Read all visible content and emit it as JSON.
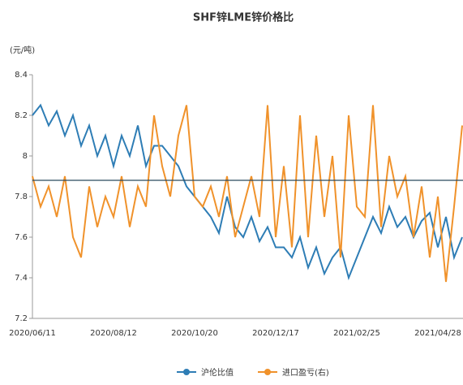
{
  "chart_data": {
    "type": "line",
    "title": "SHF锌LME锌价格比",
    "y_unit": "(元/吨)",
    "categories": [
      "2020/06/11",
      null,
      null,
      null,
      null,
      null,
      null,
      null,
      null,
      null,
      "2020/08/12",
      null,
      null,
      null,
      null,
      null,
      null,
      null,
      null,
      null,
      "2020/10/20",
      null,
      null,
      null,
      null,
      null,
      null,
      null,
      null,
      null,
      "2020/12/17",
      null,
      null,
      null,
      null,
      null,
      null,
      null,
      null,
      null,
      "2021/02/25",
      null,
      null,
      null,
      null,
      null,
      null,
      null,
      null,
      null,
      "2021/04/28",
      null,
      null,
      null
    ],
    "series": [
      {
        "name": "沪伦比值",
        "color": "#2e7db5",
        "values": [
          8.2,
          8.25,
          8.15,
          8.22,
          8.1,
          8.2,
          8.05,
          8.15,
          8.0,
          8.1,
          7.95,
          8.1,
          8.0,
          8.15,
          7.95,
          8.05,
          8.05,
          8.0,
          7.95,
          7.85,
          7.8,
          7.75,
          7.7,
          7.62,
          7.8,
          7.65,
          7.6,
          7.7,
          7.58,
          7.65,
          7.55,
          7.55,
          7.5,
          7.6,
          7.45,
          7.55,
          7.42,
          7.5,
          7.55,
          7.4,
          7.5,
          7.6,
          7.7,
          7.62,
          7.75,
          7.65,
          7.7,
          7.6,
          7.68,
          7.72,
          7.55,
          7.7,
          7.5,
          7.6
        ]
      },
      {
        "name": "进口盈亏(右)",
        "color": "#f0922b",
        "values": [
          7.9,
          7.75,
          7.85,
          7.7,
          7.9,
          7.6,
          7.5,
          7.85,
          7.65,
          7.8,
          7.7,
          7.9,
          7.65,
          7.85,
          7.75,
          8.2,
          7.95,
          7.8,
          8.1,
          8.25,
          7.8,
          7.75,
          7.85,
          7.7,
          7.9,
          7.6,
          7.75,
          7.9,
          7.7,
          8.25,
          7.6,
          7.95,
          7.55,
          8.2,
          7.6,
          8.1,
          7.7,
          8.0,
          7.5,
          8.2,
          7.75,
          7.7,
          8.25,
          7.65,
          8.0,
          7.8,
          7.9,
          7.6,
          7.85,
          7.5,
          7.8,
          7.38,
          7.75,
          8.15
        ]
      }
    ],
    "hline": 7.88,
    "ylim": [
      7.2,
      8.4
    ],
    "yticks": [
      7.2,
      7.4,
      7.6,
      7.8,
      8,
      8.2,
      8.4
    ],
    "legend": "bottom"
  }
}
